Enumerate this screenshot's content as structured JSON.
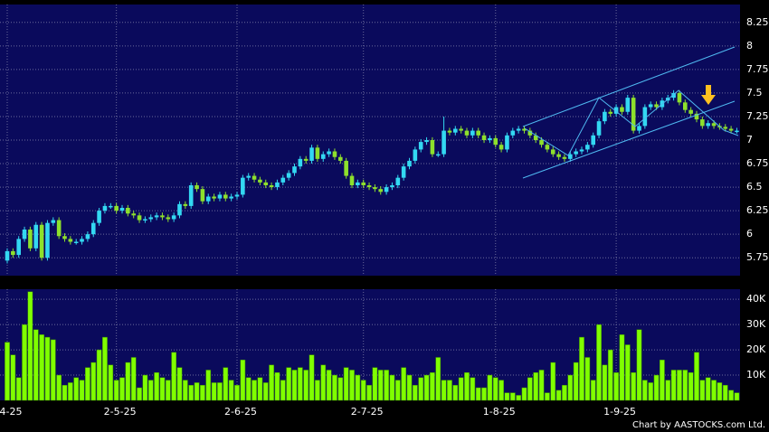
{
  "chart_data": [
    {
      "type": "candlestick",
      "open": [
        5.72,
        5.82,
        5.78,
        5.95,
        6.05,
        5.85,
        6.1,
        5.75,
        6.12,
        6.15,
        5.98,
        5.95,
        5.92,
        5.92,
        5.95,
        6.0,
        6.12,
        6.25,
        6.3,
        6.3,
        6.25,
        6.28,
        6.22,
        6.2,
        6.15,
        6.16,
        6.18,
        6.2,
        6.18,
        6.16,
        6.2,
        6.32,
        6.3,
        6.52,
        6.48,
        6.35,
        6.4,
        6.38,
        6.42,
        6.38,
        6.4,
        6.42,
        6.6,
        6.62,
        6.58,
        6.55,
        6.52,
        6.5,
        6.55,
        6.6,
        6.65,
        6.72,
        6.8,
        6.78,
        6.92,
        6.8,
        6.85,
        6.88,
        6.82,
        6.78,
        6.62,
        6.52,
        6.55,
        6.52,
        6.5,
        6.48,
        6.45,
        6.5,
        6.52,
        6.6,
        6.72,
        6.78,
        6.9,
        6.98,
        7.0,
        6.85,
        6.85,
        7.1,
        7.08,
        7.12,
        7.1,
        7.05,
        7.1,
        7.05,
        7.0,
        7.02,
        6.95,
        6.9,
        7.05,
        7.1,
        7.12,
        7.1,
        7.05,
        7.0,
        6.95,
        6.9,
        6.85,
        6.82,
        6.8,
        6.85,
        6.88,
        6.9,
        6.95,
        7.05,
        7.2,
        7.3,
        7.28,
        7.35,
        7.3,
        7.45,
        7.1,
        7.15,
        7.35,
        7.38,
        7.35,
        7.42,
        7.45,
        7.5,
        7.4,
        7.32,
        7.28,
        7.22,
        7.15,
        7.18,
        7.15,
        7.14,
        7.12,
        7.1
      ],
      "high": [
        5.85,
        5.85,
        5.98,
        6.08,
        6.08,
        6.13,
        6.13,
        6.15,
        6.18,
        6.18,
        6.01,
        5.98,
        5.95,
        5.98,
        6.03,
        6.15,
        6.28,
        6.33,
        6.33,
        6.33,
        6.31,
        6.31,
        6.25,
        6.23,
        6.19,
        6.21,
        6.23,
        6.23,
        6.21,
        6.23,
        6.35,
        6.35,
        6.55,
        6.55,
        6.51,
        6.43,
        6.43,
        6.45,
        6.45,
        6.43,
        6.45,
        6.63,
        6.65,
        6.65,
        6.61,
        6.58,
        6.55,
        6.58,
        6.63,
        6.68,
        6.75,
        6.83,
        6.83,
        6.95,
        6.95,
        6.88,
        6.91,
        6.91,
        6.85,
        6.81,
        6.65,
        6.58,
        6.58,
        6.55,
        6.53,
        6.51,
        6.53,
        6.55,
        6.63,
        6.75,
        6.81,
        6.93,
        7.01,
        7.03,
        7.03,
        6.88,
        7.25,
        7.13,
        7.15,
        7.15,
        7.13,
        7.13,
        7.13,
        7.08,
        7.05,
        7.05,
        6.98,
        7.08,
        7.13,
        7.15,
        7.15,
        7.13,
        7.08,
        7.03,
        6.98,
        6.93,
        6.88,
        6.85,
        6.88,
        6.91,
        6.93,
        6.98,
        7.08,
        7.23,
        7.33,
        7.33,
        7.38,
        7.38,
        7.48,
        7.48,
        7.18,
        7.38,
        7.41,
        7.41,
        7.45,
        7.48,
        7.53,
        7.53,
        7.43,
        7.35,
        7.31,
        7.25,
        7.21,
        7.21,
        7.18,
        7.17,
        7.15,
        7.13
      ],
      "low": [
        5.69,
        5.75,
        5.75,
        5.92,
        5.82,
        5.82,
        5.72,
        5.72,
        6.09,
        5.95,
        5.92,
        5.89,
        5.89,
        5.89,
        5.92,
        5.97,
        6.09,
        6.22,
        6.27,
        6.22,
        6.22,
        6.19,
        6.17,
        6.12,
        6.12,
        6.13,
        6.15,
        6.15,
        6.13,
        6.13,
        6.17,
        6.27,
        6.27,
        6.45,
        6.32,
        6.32,
        6.35,
        6.35,
        6.35,
        6.35,
        6.37,
        6.39,
        6.57,
        6.55,
        6.52,
        6.49,
        6.47,
        6.47,
        6.52,
        6.57,
        6.62,
        6.69,
        6.75,
        6.75,
        6.77,
        6.77,
        6.82,
        6.79,
        6.75,
        6.59,
        6.49,
        6.49,
        6.49,
        6.47,
        6.45,
        6.42,
        6.42,
        6.47,
        6.49,
        6.57,
        6.69,
        6.75,
        6.87,
        6.95,
        6.82,
        6.82,
        6.82,
        7.05,
        7.05,
        7.07,
        7.02,
        7.02,
        7.02,
        6.97,
        6.97,
        6.92,
        6.87,
        6.87,
        7.02,
        7.07,
        7.07,
        7.02,
        6.97,
        6.92,
        6.87,
        6.82,
        6.79,
        6.77,
        6.77,
        6.82,
        6.85,
        6.87,
        6.92,
        7.02,
        7.17,
        7.25,
        7.25,
        7.27,
        7.27,
        7.07,
        7.07,
        7.12,
        7.32,
        7.32,
        7.32,
        7.39,
        7.42,
        7.37,
        7.29,
        7.25,
        7.19,
        7.12,
        7.12,
        7.12,
        7.11,
        7.09,
        7.07,
        7.07
      ],
      "close": [
        5.82,
        5.78,
        5.95,
        6.05,
        5.85,
        6.1,
        5.75,
        6.12,
        6.15,
        5.98,
        5.95,
        5.92,
        5.92,
        5.95,
        6.0,
        6.12,
        6.25,
        6.3,
        6.3,
        6.25,
        6.28,
        6.22,
        6.2,
        6.15,
        6.16,
        6.18,
        6.2,
        6.18,
        6.16,
        6.2,
        6.32,
        6.3,
        6.52,
        6.48,
        6.35,
        6.4,
        6.38,
        6.42,
        6.38,
        6.4,
        6.42,
        6.6,
        6.62,
        6.58,
        6.55,
        6.52,
        6.5,
        6.55,
        6.6,
        6.65,
        6.72,
        6.8,
        6.78,
        6.92,
        6.8,
        6.85,
        6.88,
        6.82,
        6.78,
        6.62,
        6.52,
        6.55,
        6.52,
        6.5,
        6.48,
        6.45,
        6.5,
        6.52,
        6.6,
        6.72,
        6.78,
        6.9,
        6.98,
        7.0,
        6.85,
        6.85,
        7.1,
        7.08,
        7.12,
        7.1,
        7.05,
        7.1,
        7.05,
        7.0,
        7.02,
        6.95,
        6.9,
        7.05,
        7.1,
        7.12,
        7.1,
        7.05,
        7.0,
        6.95,
        6.9,
        6.85,
        6.82,
        6.8,
        6.85,
        6.88,
        6.9,
        6.95,
        7.05,
        7.2,
        7.3,
        7.28,
        7.35,
        7.3,
        7.45,
        7.1,
        7.15,
        7.35,
        7.38,
        7.35,
        7.42,
        7.45,
        7.5,
        7.4,
        7.32,
        7.28,
        7.22,
        7.15,
        7.18,
        7.15,
        7.14,
        7.12,
        7.1,
        7.1
      ],
      "up_color": "#33d8f2",
      "down_color": "#8ee02c",
      "ylim": [
        5.56,
        8.44
      ],
      "yticks": [
        5.75,
        6,
        6.25,
        6.5,
        6.75,
        7,
        7.25,
        7.5,
        7.75,
        8,
        8.25
      ],
      "grid": true
    },
    {
      "type": "bar",
      "categories": [
        "4-25",
        null,
        null,
        null,
        null,
        null,
        null,
        null,
        null,
        null,
        null,
        null,
        null,
        null,
        null,
        null,
        null,
        null,
        null,
        "2-5-25",
        null,
        null,
        null,
        null,
        null,
        null,
        null,
        null,
        null,
        null,
        null,
        null,
        null,
        null,
        null,
        null,
        null,
        null,
        null,
        null,
        "2-6-25",
        null,
        null,
        null,
        null,
        null,
        null,
        null,
        null,
        null,
        null,
        null,
        null,
        null,
        null,
        null,
        null,
        null,
        null,
        null,
        null,
        null,
        "2-7-25",
        null,
        null,
        null,
        null,
        null,
        null,
        null,
        null,
        null,
        null,
        null,
        null,
        null,
        null,
        null,
        null,
        null,
        null,
        null,
        null,
        null,
        null,
        "1-8-25",
        null,
        null,
        null,
        null,
        null,
        null,
        null,
        null,
        null,
        null,
        null,
        null,
        null,
        null,
        null,
        null,
        null,
        null,
        null,
        null,
        "1-9-25",
        null,
        null,
        null,
        null,
        null,
        null,
        null,
        null,
        null,
        null,
        null,
        null,
        null,
        null,
        null,
        null,
        null,
        null,
        null,
        null,
        null
      ],
      "values": [
        23000,
        18000,
        9000,
        30000,
        43000,
        28000,
        26000,
        25000,
        24000,
        10000,
        6000,
        7000,
        9000,
        8000,
        13000,
        15000,
        20000,
        25000,
        14000,
        8000,
        9000,
        15000,
        17000,
        5000,
        10000,
        8000,
        11000,
        9000,
        8000,
        19000,
        13000,
        8000,
        6000,
        7000,
        6000,
        12000,
        7000,
        7000,
        13000,
        8000,
        6000,
        16000,
        9000,
        8000,
        9000,
        7000,
        14000,
        11000,
        8000,
        13000,
        12000,
        13000,
        12000,
        18000,
        8000,
        14000,
        12000,
        10000,
        9000,
        13000,
        12000,
        10000,
        8000,
        6000,
        13000,
        12000,
        12000,
        10000,
        8000,
        13000,
        10000,
        6000,
        9000,
        10000,
        11000,
        17000,
        8000,
        8000,
        6000,
        9000,
        11000,
        9000,
        5000,
        5000,
        10000,
        9000,
        8000,
        3000,
        3000,
        2000,
        5000,
        9000,
        11000,
        12000,
        3000,
        15000,
        4000,
        6000,
        10000,
        15000,
        25000,
        17000,
        8000,
        30000,
        14000,
        20000,
        11000,
        26000,
        22000,
        11000,
        28000,
        8000,
        7000,
        10000,
        16000,
        8000,
        12000,
        12000,
        12000,
        11000,
        19000,
        8000,
        9000,
        8000,
        7000,
        6000,
        4000,
        3000
      ],
      "color": "#80ff00",
      "ylim": [
        0,
        44000
      ],
      "yticks": [
        {
          "value": 10000,
          "label": "10K"
        },
        {
          "value": 20000,
          "label": "20K"
        },
        {
          "value": 30000,
          "label": "30K"
        },
        {
          "value": 40000,
          "label": "40K"
        }
      ],
      "grid": true,
      "source": "Chart by AASTOCKS.com Ltd."
    }
  ]
}
